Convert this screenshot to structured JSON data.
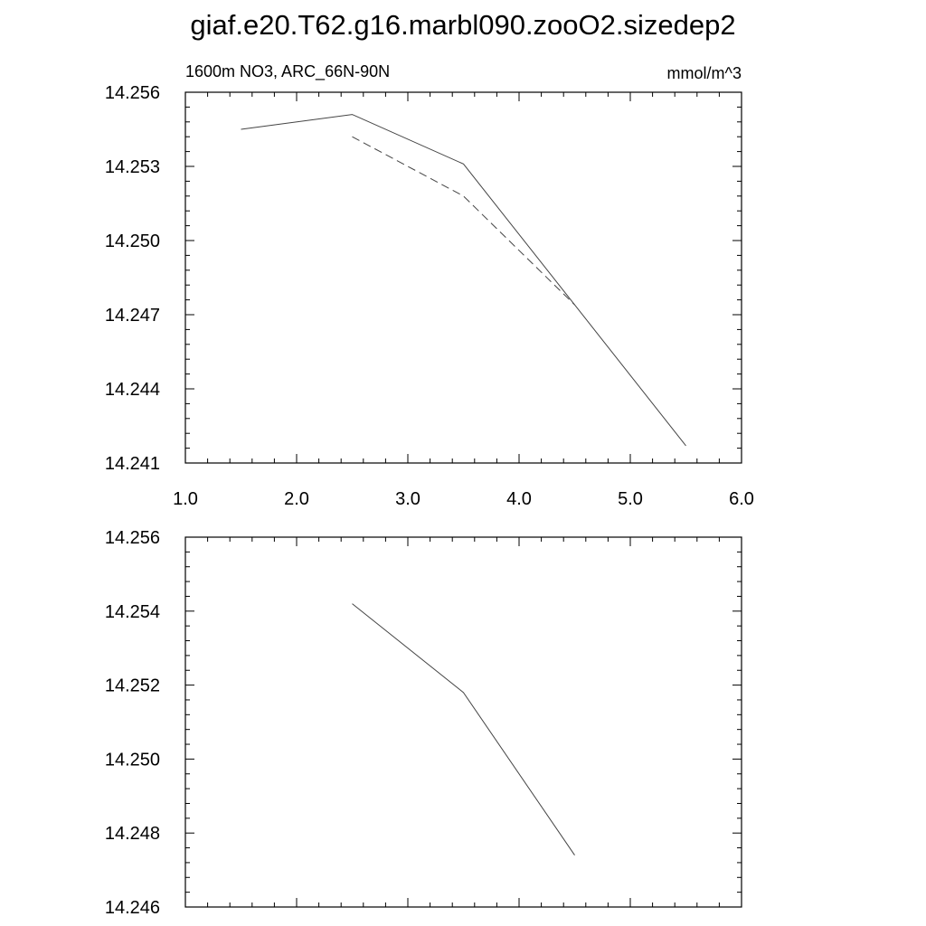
{
  "title": "giaf.e20.T62.g16.marbl090.zooO2.sizedep2",
  "chart_data": [
    {
      "type": "line",
      "left_label": "1600m NO3, ARC_66N-90N",
      "right_label": "mmol/m^3",
      "xlim": [
        1.0,
        6.0
      ],
      "ylim": [
        14.241,
        14.256
      ],
      "x_ticks": [
        "1.0",
        "2.0",
        "3.0",
        "4.0",
        "5.0",
        "6.0"
      ],
      "y_ticks": [
        "14.241",
        "14.244",
        "14.247",
        "14.250",
        "14.253",
        "14.256"
      ],
      "grid": false,
      "series": [
        {
          "style": "solid",
          "x": [
            1.5,
            2.5,
            3.5,
            4.5,
            5.5
          ],
          "y": [
            14.2545,
            14.2551,
            14.2531,
            14.2474,
            14.2417
          ]
        },
        {
          "style": "dashed",
          "x": [
            2.5,
            3.5,
            4.5
          ],
          "y": [
            14.2542,
            14.2518,
            14.2474
          ]
        }
      ]
    },
    {
      "type": "line",
      "xlim": [
        1.0,
        6.0
      ],
      "ylim": [
        14.246,
        14.256
      ],
      "y_ticks": [
        "14.246",
        "14.248",
        "14.250",
        "14.252",
        "14.254",
        "14.256"
      ],
      "grid": false,
      "series": [
        {
          "style": "solid",
          "x": [
            2.5,
            3.5,
            4.5
          ],
          "y": [
            14.2542,
            14.2518,
            14.2474
          ]
        }
      ]
    }
  ]
}
